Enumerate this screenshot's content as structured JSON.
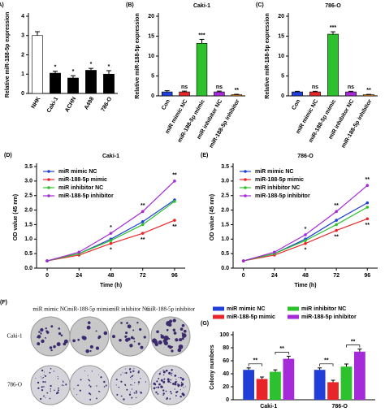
{
  "chart_data": [
    {
      "type": "bar",
      "panel": "(A)",
      "ylabel": "Relative miR-188-5p expression",
      "categories": [
        "NHK",
        "Caki-1",
        "ACHN",
        "A498",
        "786-O"
      ],
      "values": [
        3.0,
        1.05,
        0.8,
        1.2,
        1.0
      ],
      "errors": [
        0.2,
        0.1,
        0.12,
        0.1,
        0.18
      ],
      "colors": [
        "#ffffff",
        "#000000",
        "#000000",
        "#000000",
        "#000000"
      ],
      "annotations": [
        null,
        "*",
        "*",
        "*",
        "*"
      ],
      "ylim": [
        0,
        4
      ],
      "yticks": [
        0,
        1,
        2,
        3,
        4
      ]
    },
    {
      "type": "bar",
      "panel": "(B)",
      "title": "Caki-1",
      "ylabel": "Relative miR-188-5p expression",
      "categories": [
        "Con",
        "miR mimic NC",
        "miR-188-5p mimic",
        "miR inhibitor NC",
        "miR-188-5p inhibitor"
      ],
      "values": [
        1.0,
        1.0,
        13.2,
        1.0,
        0.3
      ],
      "errors": [
        0.3,
        0.2,
        1.0,
        0.2,
        0.1
      ],
      "colors": [
        "#1f3fd8",
        "#e8262a",
        "#2ec12e",
        "#a52ad8",
        "#f08c1a"
      ],
      "annotations": [
        null,
        "ns",
        "***",
        "ns",
        "**"
      ],
      "ylim": [
        0,
        20
      ],
      "yticks": [
        0,
        5,
        10,
        15,
        20
      ]
    },
    {
      "type": "bar",
      "panel": "(C)",
      "title": "786-O",
      "ylabel": "Relative miR-188-5p expression",
      "categories": [
        "Con",
        "miR mimic NC",
        "miR-188-5p mimic",
        "miR inhibitor NC",
        "miR-188-5p inhibitor"
      ],
      "values": [
        1.0,
        1.0,
        15.5,
        1.0,
        0.3
      ],
      "errors": [
        0.15,
        0.15,
        0.6,
        0.15,
        0.08
      ],
      "colors": [
        "#1f3fd8",
        "#e8262a",
        "#2ec12e",
        "#a52ad8",
        "#f08c1a"
      ],
      "annotations": [
        null,
        "ns",
        "***",
        "ns",
        "**"
      ],
      "ylim": [
        0,
        20
      ],
      "yticks": [
        0,
        5,
        10,
        15,
        20
      ]
    },
    {
      "type": "line",
      "panel": "(D)",
      "title": "Caki-1",
      "xlabel": "Time (h)",
      "ylabel": "OD value (45 nm)",
      "x": [
        0,
        24,
        48,
        72,
        96
      ],
      "xlim": [
        -8,
        104
      ],
      "xticks": [
        0,
        24,
        48,
        72,
        96
      ],
      "ylim": [
        0,
        3.5
      ],
      "yticks": [
        {
          "value": 0,
          "label": "0.0"
        },
        0.5,
        {
          "value": 1,
          "label": "1.0"
        },
        1.5,
        {
          "value": 2,
          "label": "2.0"
        },
        2.5,
        {
          "value": 3,
          "label": "3.0"
        },
        3.5
      ],
      "series": [
        {
          "name": "miR mimic NC",
          "color": "#1f3fd8",
          "values": [
            0.25,
            0.5,
            1.0,
            1.6,
            2.35
          ]
        },
        {
          "name": "miR-188-5p mimic",
          "color": "#e8262a",
          "values": [
            0.25,
            0.45,
            0.85,
            1.2,
            1.65
          ],
          "annotations": [
            null,
            null,
            "*",
            "**",
            "**"
          ]
        },
        {
          "name": "miR inhibitor NC",
          "color": "#2ec12e",
          "values": [
            0.25,
            0.5,
            0.95,
            1.5,
            2.3
          ]
        },
        {
          "name": "miR-188-5p inhibitor",
          "color": "#a52ad8",
          "values": [
            0.25,
            0.55,
            1.2,
            1.95,
            3.0
          ],
          "annotations": [
            null,
            null,
            "*",
            "**",
            "**"
          ]
        }
      ]
    },
    {
      "type": "line",
      "panel": "(E)",
      "title": "786-O",
      "xlabel": "Time (h)",
      "ylabel": "OD value (45 nm)",
      "x": [
        0,
        24,
        48,
        72,
        96
      ],
      "xlim": [
        -8,
        104
      ],
      "xticks": [
        0,
        24,
        48,
        72,
        96
      ],
      "ylim": [
        0,
        3.5
      ],
      "yticks": [
        {
          "value": 0,
          "label": "0.0"
        },
        0.5,
        {
          "value": 1,
          "label": "1.0"
        },
        1.5,
        {
          "value": 2,
          "label": "2.0"
        },
        2.5,
        {
          "value": 3,
          "label": "3.0"
        },
        3.5
      ],
      "series": [
        {
          "name": "miR mimic NC",
          "color": "#1f3fd8",
          "values": [
            0.25,
            0.5,
            1.0,
            1.65,
            2.25
          ]
        },
        {
          "name": "miR-188-5p mimic",
          "color": "#e8262a",
          "values": [
            0.25,
            0.45,
            0.85,
            1.3,
            1.7
          ],
          "annotations": [
            null,
            null,
            "*",
            "**",
            "**"
          ]
        },
        {
          "name": "miR inhibitor NC",
          "color": "#2ec12e",
          "values": [
            0.25,
            0.5,
            0.95,
            1.5,
            2.1
          ]
        },
        {
          "name": "miR-188-5p inhibitor",
          "color": "#a52ad8",
          "values": [
            0.25,
            0.55,
            1.15,
            1.95,
            2.85
          ],
          "annotations": [
            null,
            null,
            "*",
            "**",
            "**"
          ]
        }
      ]
    },
    {
      "type": "grouped-bar",
      "panel": "(G)",
      "ylabel": "Colony numbers",
      "categories": [
        "Caki-1",
        "786-O"
      ],
      "ylim": [
        0,
        100
      ],
      "yticks": [
        0,
        20,
        40,
        60,
        80,
        100
      ],
      "annotations": [
        "**",
        "**",
        "**",
        "**"
      ],
      "series": [
        {
          "name": "miR mimic NC",
          "color": "#1f3fd8",
          "values": [
            46,
            46
          ],
          "errors": [
            3,
            3
          ]
        },
        {
          "name": "miR-188-5p mimic",
          "color": "#e8262a",
          "values": [
            32,
            27
          ],
          "errors": [
            3,
            3
          ]
        },
        {
          "name": "miR inhibitor NC",
          "color": "#2ec12e",
          "values": [
            43,
            51
          ],
          "errors": [
            3,
            4
          ]
        },
        {
          "name": "miR-188-5p inhibitor",
          "color": "#a52ad8",
          "values": [
            63,
            74
          ],
          "errors": [
            4,
            4
          ]
        }
      ]
    }
  ],
  "image_panel": {
    "panel": "(F)",
    "columns": [
      "miR mimic NC",
      "miR-188-5p mimic",
      "miR inhibitor NC",
      "miR-188-5p inhibitor"
    ],
    "rows": [
      "Caki-1",
      "786-O"
    ]
  }
}
